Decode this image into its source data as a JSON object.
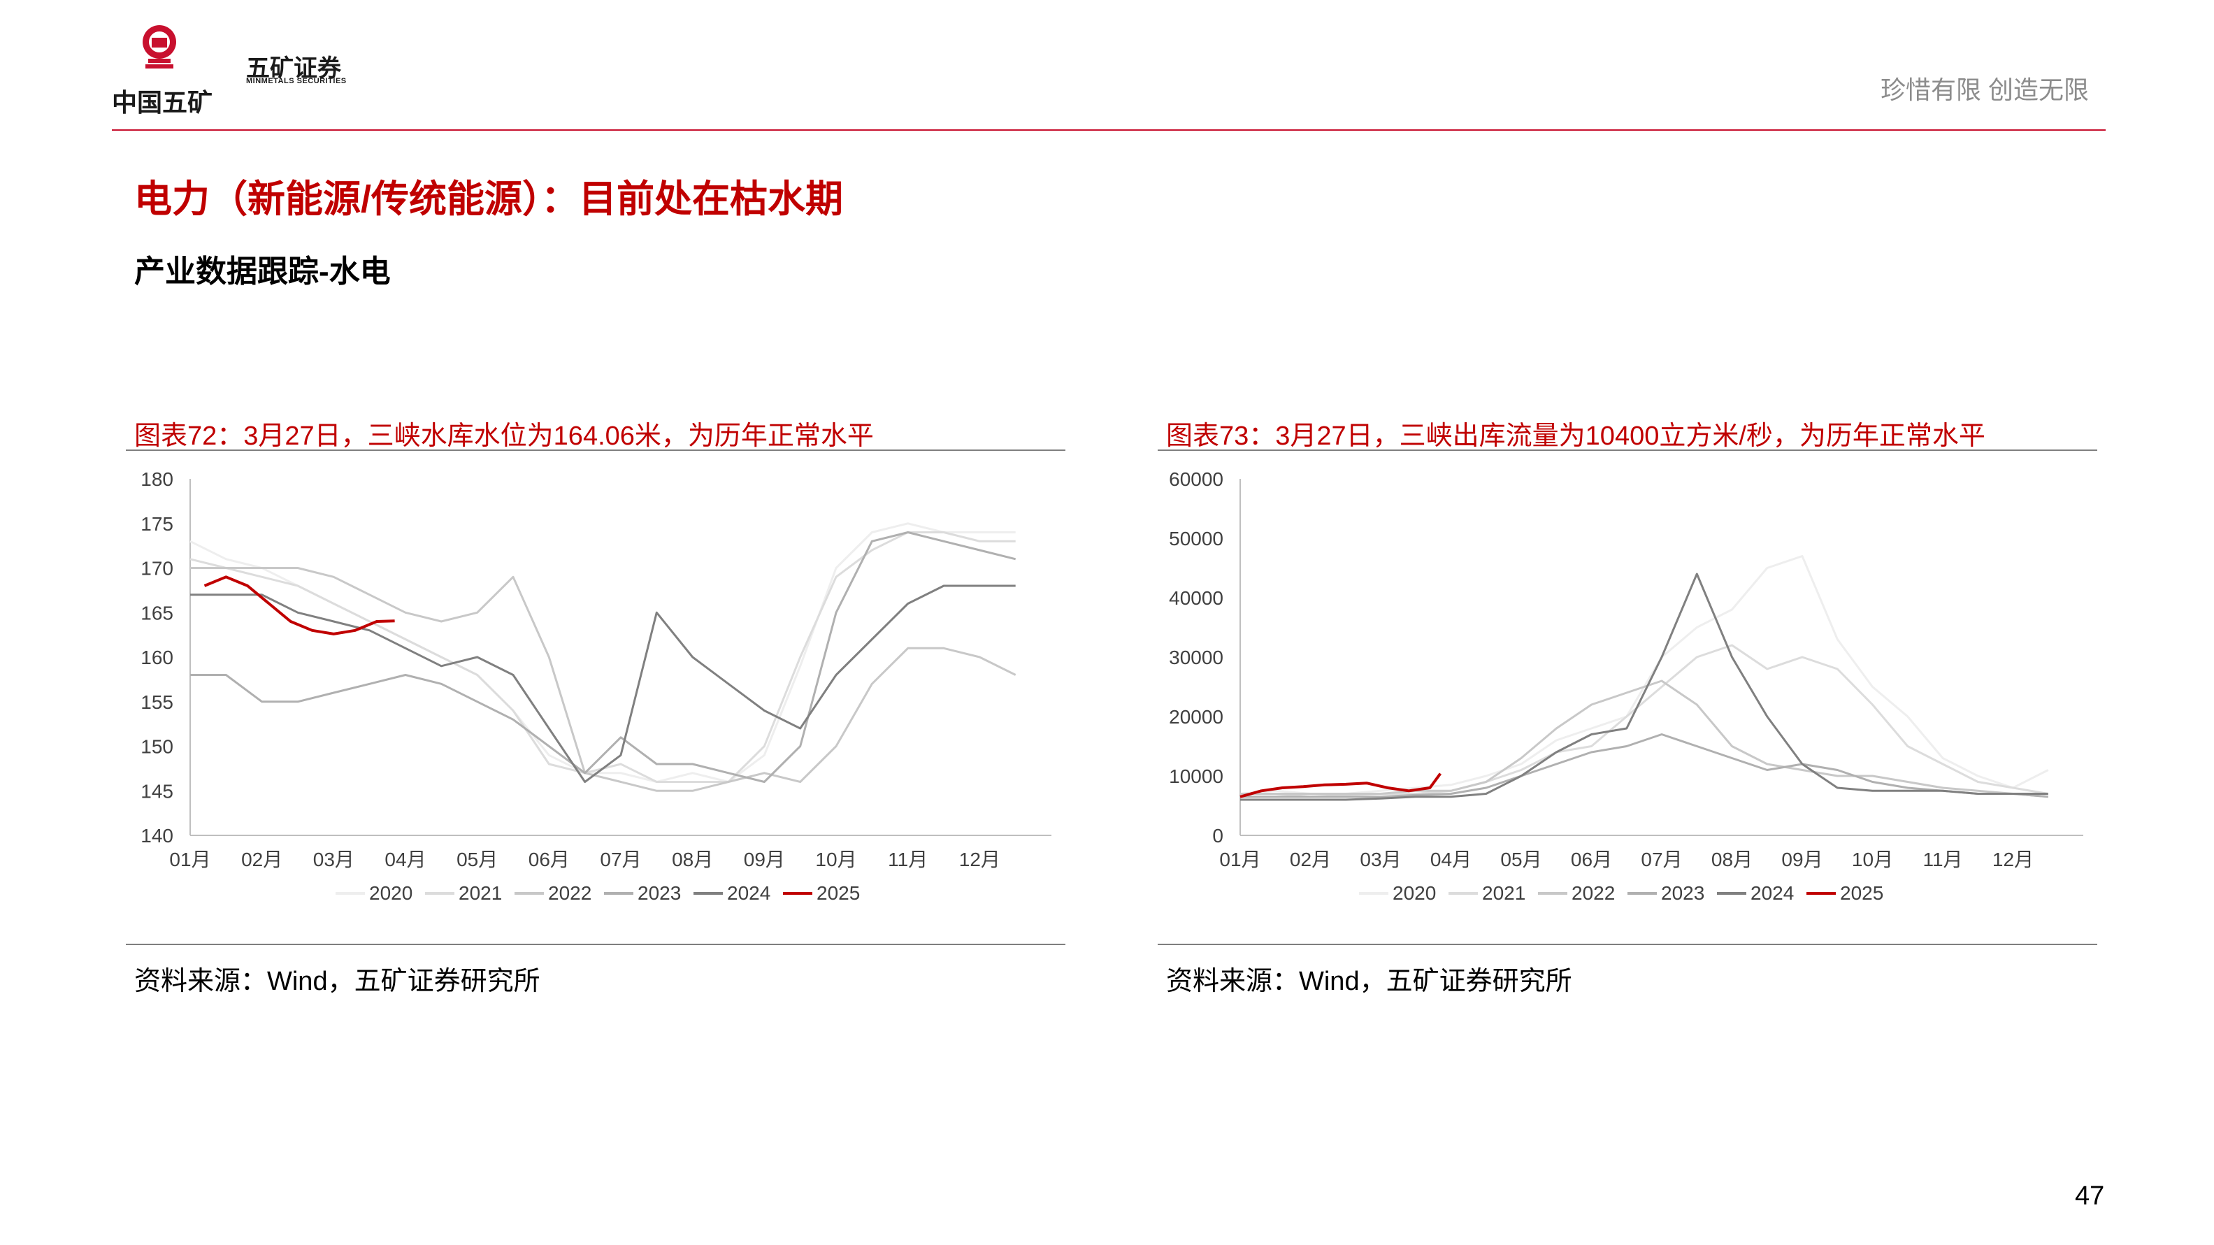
{
  "header": {
    "logo_cn": "中国五矿",
    "brand_name": "五矿证券",
    "brand_en": "MINMETALS SECURITIES",
    "slogan": "珍惜有限  创造无限"
  },
  "page": {
    "title": "电力（新能源/传统能源）：目前处在枯水期",
    "subtitle": "产业数据跟踪-水电",
    "number": "47"
  },
  "colors": {
    "accent": "#c00000",
    "s2020": "#eeeeee",
    "s2021": "#dcdcdc",
    "s2022": "#c8c8c8",
    "s2023": "#b0b0b0",
    "s2024": "#808080",
    "s2025": "#c00000"
  },
  "chart_data": [
    {
      "type": "line",
      "caption": "图表72：3月27日，三峡水库水位为164.06米，为历年正常水平",
      "source": "资料来源：Wind，五矿证券研究所",
      "x_ticks": [
        "01月",
        "02月",
        "03月",
        "04月",
        "05月",
        "06月",
        "07月",
        "08月",
        "09月",
        "10月",
        "11月",
        "12月"
      ],
      "ylim": [
        140,
        180
      ],
      "y_ticks": [
        140,
        145,
        150,
        155,
        160,
        165,
        170,
        175,
        180
      ],
      "legend_position": "bottom",
      "series": [
        {
          "name": "2020",
          "x": [
            1,
            1.5,
            2,
            2.5,
            3,
            3.5,
            4,
            4.5,
            5,
            5.5,
            6,
            6.5,
            7,
            7.5,
            8,
            8.5,
            9,
            9.5,
            10,
            10.5,
            11,
            11.5,
            12,
            12.5
          ],
          "values": [
            173,
            171,
            170,
            168,
            166,
            164,
            162,
            160,
            158,
            154,
            149,
            147,
            147,
            146,
            147,
            146,
            149,
            159,
            170,
            174,
            175,
            174,
            174,
            174
          ]
        },
        {
          "name": "2021",
          "x": [
            1,
            1.5,
            2,
            2.5,
            3,
            3.5,
            4,
            4.5,
            5,
            5.5,
            6,
            6.5,
            7,
            7.5,
            8,
            8.5,
            9,
            9.5,
            10,
            10.5,
            11,
            11.5,
            12,
            12.5
          ],
          "values": [
            171,
            170,
            169,
            168,
            166,
            164,
            162,
            160,
            158,
            154,
            148,
            147,
            148,
            146,
            146,
            146,
            150,
            160,
            169,
            172,
            174,
            174,
            173,
            173
          ]
        },
        {
          "name": "2022",
          "x": [
            1,
            1.5,
            2,
            2.5,
            3,
            3.5,
            4,
            4.5,
            5,
            5.5,
            6,
            6.5,
            7,
            7.5,
            8,
            8.5,
            9,
            9.5,
            10,
            10.5,
            11,
            11.5,
            12,
            12.5
          ],
          "values": [
            170,
            170,
            170,
            170,
            169,
            167,
            165,
            164,
            165,
            169,
            160,
            147,
            146,
            145,
            145,
            146,
            147,
            146,
            150,
            157,
            161,
            161,
            160,
            158
          ]
        },
        {
          "name": "2023",
          "x": [
            1,
            1.5,
            2,
            2.5,
            3,
            3.5,
            4,
            4.5,
            5,
            5.5,
            6,
            6.5,
            7,
            7.5,
            8,
            8.5,
            9,
            9.5,
            10,
            10.5,
            11,
            11.5,
            12,
            12.5
          ],
          "values": [
            158,
            158,
            155,
            155,
            156,
            157,
            158,
            157,
            155,
            153,
            150,
            147,
            151,
            148,
            148,
            147,
            146,
            150,
            165,
            173,
            174,
            173,
            172,
            171
          ]
        },
        {
          "name": "2024",
          "x": [
            1,
            1.5,
            2,
            2.5,
            3,
            3.5,
            4,
            4.5,
            5,
            5.5,
            6,
            6.5,
            7,
            7.5,
            8,
            8.5,
            9,
            9.5,
            10,
            10.5,
            11,
            11.5,
            12,
            12.5
          ],
          "values": [
            167,
            167,
            167,
            165,
            164,
            163,
            161,
            159,
            160,
            158,
            152,
            146,
            149,
            165,
            160,
            157,
            154,
            152,
            158,
            162,
            166,
            168,
            168,
            168
          ]
        },
        {
          "name": "2025",
          "x": [
            1.2,
            1.5,
            1.8,
            2.1,
            2.4,
            2.7,
            3.0,
            3.3,
            3.6,
            3.85
          ],
          "values": [
            168,
            169,
            168,
            166,
            164,
            163,
            162.6,
            163,
            164,
            164.06
          ]
        }
      ]
    },
    {
      "type": "line",
      "caption": "图表73：3月27日，三峡出库流量为10400立方米/秒，为历年正常水平",
      "source": "资料来源：Wind，五矿证券研究所",
      "x_ticks": [
        "01月",
        "02月",
        "03月",
        "04月",
        "05月",
        "06月",
        "07月",
        "08月",
        "09月",
        "10月",
        "11月",
        "12月"
      ],
      "ylim": [
        0,
        60000
      ],
      "y_ticks": [
        0,
        10000,
        20000,
        30000,
        40000,
        50000,
        60000
      ],
      "legend_position": "bottom",
      "series": [
        {
          "name": "2020",
          "x": [
            1,
            1.5,
            2,
            2.5,
            3,
            3.5,
            4,
            4.5,
            5,
            5.5,
            6,
            6.5,
            7,
            7.5,
            8,
            8.5,
            9,
            9.5,
            10,
            10.5,
            11,
            11.5,
            12,
            12.5
          ],
          "values": [
            7000,
            7500,
            7000,
            7000,
            7500,
            8000,
            8500,
            10000,
            12000,
            16000,
            18000,
            20000,
            30000,
            35000,
            38000,
            45000,
            47000,
            33000,
            25000,
            20000,
            13000,
            10000,
            8000,
            11000
          ]
        },
        {
          "name": "2021",
          "x": [
            1,
            1.5,
            2,
            2.5,
            3,
            3.5,
            4,
            4.5,
            5,
            5.5,
            6,
            6.5,
            7,
            7.5,
            8,
            8.5,
            9,
            9.5,
            10,
            10.5,
            11,
            11.5,
            12,
            12.5
          ],
          "values": [
            7000,
            7000,
            6500,
            6800,
            7000,
            7000,
            7500,
            9000,
            11000,
            14000,
            15000,
            20000,
            25000,
            30000,
            32000,
            28000,
            30000,
            28000,
            22000,
            15000,
            12000,
            9000,
            8000,
            7000
          ]
        },
        {
          "name": "2022",
          "x": [
            1,
            1.5,
            2,
            2.5,
            3,
            3.5,
            4,
            4.5,
            5,
            5.5,
            6,
            6.5,
            7,
            7.5,
            8,
            8.5,
            9,
            9.5,
            10,
            10.5,
            11,
            11.5,
            12,
            12.5
          ],
          "values": [
            7000,
            7000,
            7000,
            7000,
            7000,
            7500,
            7500,
            9000,
            13000,
            18000,
            22000,
            24000,
            26000,
            22000,
            15000,
            12000,
            11000,
            10000,
            10000,
            9000,
            8000,
            7500,
            7000,
            6500
          ]
        },
        {
          "name": "2023",
          "x": [
            1,
            1.5,
            2,
            2.5,
            3,
            3.5,
            4,
            4.5,
            5,
            5.5,
            6,
            6.5,
            7,
            7.5,
            8,
            8.5,
            9,
            9.5,
            10,
            10.5,
            11,
            11.5,
            12,
            12.5
          ],
          "values": [
            6500,
            6500,
            6500,
            6500,
            6500,
            6800,
            7000,
            8000,
            10000,
            12000,
            14000,
            15000,
            17000,
            15000,
            13000,
            11000,
            12000,
            11000,
            9000,
            8000,
            7500,
            7000,
            7000,
            6500
          ]
        },
        {
          "name": "2024",
          "x": [
            1,
            1.5,
            2,
            2.5,
            3,
            3.5,
            4,
            4.5,
            5,
            5.5,
            6,
            6.5,
            7,
            7.5,
            8,
            8.5,
            9,
            9.5,
            10,
            10.5,
            11,
            11.5,
            12,
            12.5
          ],
          "values": [
            6000,
            6000,
            6000,
            6000,
            6200,
            6500,
            6500,
            7000,
            10000,
            14000,
            17000,
            18000,
            30000,
            44000,
            30000,
            20000,
            12000,
            8000,
            7500,
            7500,
            7500,
            7000,
            7000,
            7000
          ]
        },
        {
          "name": "2025",
          "x": [
            1,
            1.3,
            1.6,
            1.9,
            2.2,
            2.5,
            2.8,
            3.1,
            3.4,
            3.7,
            3.85
          ],
          "values": [
            6500,
            7500,
            8000,
            8200,
            8500,
            8600,
            8800,
            8000,
            7500,
            8000,
            10400
          ]
        }
      ]
    }
  ]
}
